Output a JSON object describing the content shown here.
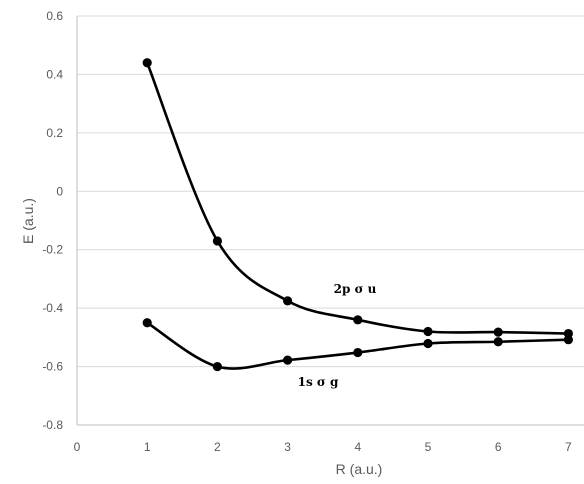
{
  "chart_data": {
    "type": "scatter",
    "title": "",
    "xlabel": "R (a.u.)",
    "ylabel": "E (a.u.)",
    "xlim": [
      0,
      7
    ],
    "ylim": [
      -0.8,
      0.6
    ],
    "xticks": [
      0,
      1,
      2,
      3,
      4,
      5,
      6,
      7
    ],
    "yticks": [
      0.6,
      0.4,
      0.2,
      0,
      -0.2,
      -0.4,
      -0.6,
      -0.8
    ],
    "grid": "horizontal",
    "line_style": "smoothed line with markers",
    "series": [
      {
        "name": "2p σ u",
        "x": [
          1,
          2,
          3,
          4,
          5,
          6,
          7
        ],
        "y": [
          0.44,
          -0.17,
          -0.375,
          -0.44,
          -0.48,
          -0.482,
          -0.487
        ],
        "color": "#000000"
      },
      {
        "name": "1s σ g",
        "x": [
          1,
          2,
          3,
          4,
          5,
          6,
          7
        ],
        "y": [
          -0.45,
          -0.6,
          -0.578,
          -0.552,
          -0.521,
          -0.515,
          -0.508
        ],
        "color": "#000000"
      }
    ]
  }
}
